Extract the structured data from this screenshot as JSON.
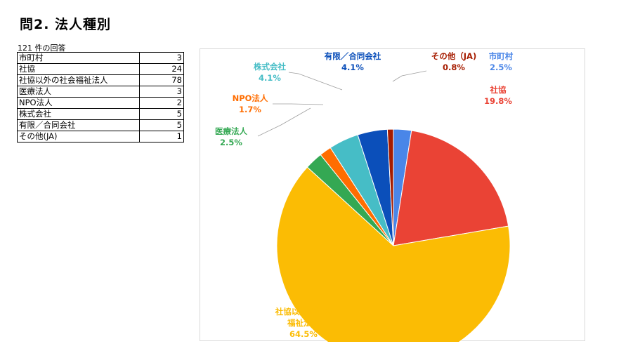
{
  "title": "問2. 法人種別",
  "response_count": "121 件の回答",
  "table": {
    "rows": [
      {
        "label": "市町村",
        "value": "3"
      },
      {
        "label": "社協",
        "value": "24"
      },
      {
        "label": "社協以外の社会福祉法人",
        "value": "78"
      },
      {
        "label": "医療法人",
        "value": "3"
      },
      {
        "label": "NPO法人",
        "value": "2"
      },
      {
        "label": "株式会社",
        "value": "5"
      },
      {
        "label": "有限／合同会社",
        "value": "5"
      },
      {
        "label": "その他(JA)",
        "value": "1"
      }
    ]
  },
  "chart_data": {
    "type": "pie",
    "start_angle_deg": 0,
    "direction": "clockwise",
    "slices": [
      {
        "label": "市町村",
        "label_lines": [
          "市町村"
        ],
        "value": 3,
        "percent_label": "2.5%",
        "color": "#4a86e8"
      },
      {
        "label": "社協",
        "label_lines": [
          "社協"
        ],
        "value": 24,
        "percent_label": "19.8%",
        "color": "#ea4335"
      },
      {
        "label": "社協以外の社会福祉法人",
        "label_lines": [
          "社協以外の社会",
          "福祉法人"
        ],
        "value": 78,
        "percent_label": "64.5%",
        "color": "#fbbc04"
      },
      {
        "label": "医療法人",
        "label_lines": [
          "医療法人"
        ],
        "value": 3,
        "percent_label": "2.5%",
        "color": "#34a853"
      },
      {
        "label": "NPO法人",
        "label_lines": [
          "NPO法人"
        ],
        "value": 2,
        "percent_label": "1.7%",
        "color": "#ff6d01"
      },
      {
        "label": "株式会社",
        "label_lines": [
          "株式会社"
        ],
        "value": 5,
        "percent_label": "4.1%",
        "color": "#46bdc6"
      },
      {
        "label": "有限／合同会社",
        "label_lines": [
          "有限／合同会社"
        ],
        "value": 5,
        "percent_label": "4.1%",
        "color": "#0b4fba"
      },
      {
        "label": "その他（JA)",
        "label_lines": [
          "その他（JA)"
        ],
        "value": 1,
        "percent_label": "0.8%",
        "color": "#a61c00"
      }
    ]
  }
}
